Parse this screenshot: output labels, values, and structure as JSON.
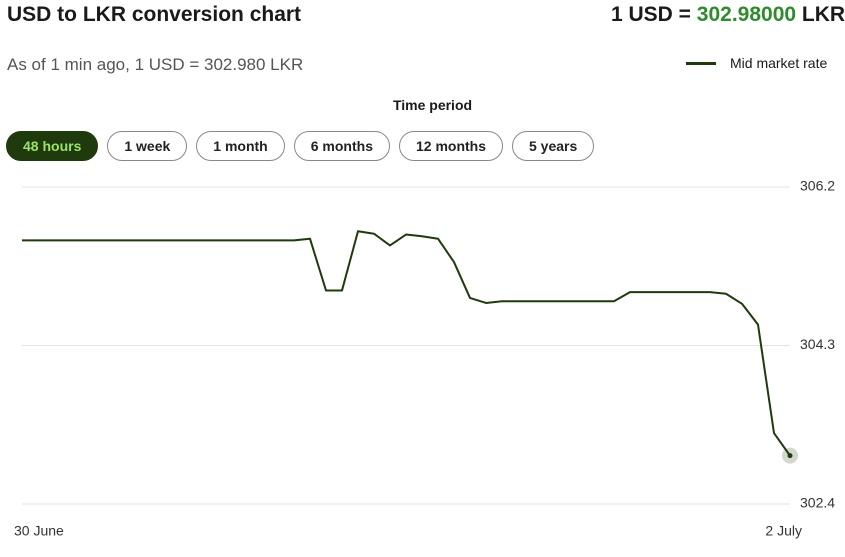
{
  "header": {
    "title": "USD to LKR conversion chart",
    "rate_prefix": "1 USD =",
    "rate_value": "302.98000",
    "rate_currency": "LKR",
    "as_of": "As of 1 min ago, 1 USD = 302.980 LKR"
  },
  "time_period": {
    "label": "Time period",
    "options": [
      "48 hours",
      "1 week",
      "1 month",
      "6 months",
      "12 months",
      "5 years"
    ],
    "selected": 0
  },
  "chart_data": {
    "type": "line",
    "categories": [
      "30 June",
      null,
      null,
      null,
      null,
      null,
      null,
      null,
      null,
      null,
      null,
      null,
      null,
      null,
      null,
      null,
      null,
      null,
      null,
      null,
      null,
      null,
      null,
      null,
      null,
      null,
      null,
      null,
      null,
      null,
      null,
      null,
      null,
      null,
      null,
      null,
      null,
      null,
      null,
      null,
      null,
      null,
      null,
      null,
      null,
      null,
      null,
      null,
      "2 July"
    ],
    "series": [
      {
        "name": "Mid market rate",
        "color": "#1f3a0c",
        "values": [
          305.56,
          305.56,
          305.56,
          305.56,
          305.56,
          305.56,
          305.56,
          305.56,
          305.56,
          305.56,
          305.56,
          305.56,
          305.56,
          305.56,
          305.56,
          305.56,
          305.56,
          305.56,
          305.58,
          304.96,
          304.96,
          305.67,
          305.64,
          305.5,
          305.63,
          305.61,
          305.58,
          305.3,
          304.87,
          304.81,
          304.83,
          304.83,
          304.83,
          304.83,
          304.83,
          304.83,
          304.83,
          304.83,
          304.94,
          304.94,
          304.94,
          304.94,
          304.94,
          304.94,
          304.92,
          304.8,
          304.55,
          303.25,
          302.98
        ]
      }
    ],
    "ylim": [
      302.4,
      306.2
    ],
    "yticks": [
      306.2,
      304.3,
      302.4
    ],
    "grid": true
  }
}
